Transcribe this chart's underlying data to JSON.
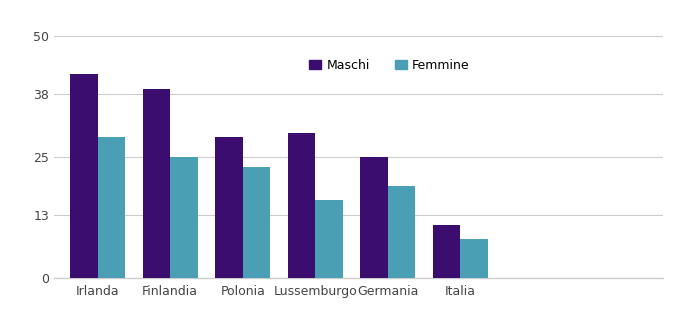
{
  "categories": [
    "Irlanda",
    "Finlandia",
    "Polonia",
    "Lussemburgo",
    "Germania",
    "Italia"
  ],
  "maschi": [
    42,
    39,
    29,
    30,
    25,
    11
  ],
  "femmine": [
    29,
    25,
    23,
    16,
    19,
    8
  ],
  "maschi_color": "#3B0D6E",
  "femmine_color": "#4A9FB5",
  "yticks": [
    0,
    13,
    25,
    38,
    50
  ],
  "ylim": [
    0,
    54
  ],
  "legend_maschi": "Maschi",
  "legend_femmine": "Femmine",
  "background_color": "#FFFFFF",
  "bar_width": 0.38,
  "grid_color": "#CCCCCC"
}
